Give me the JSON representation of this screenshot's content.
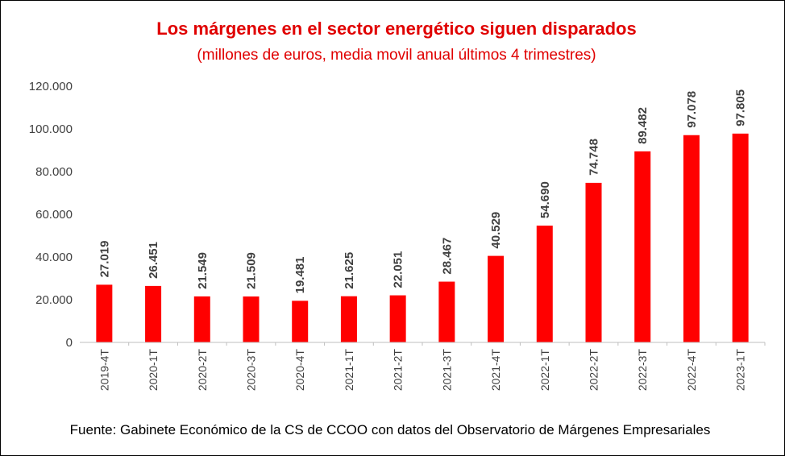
{
  "chart_data": {
    "type": "bar",
    "title": "Los márgenes en el sector energético siguen disparados",
    "subtitle": "(millones de euros, media movil anual últimos 4 trimestres)",
    "categories": [
      "2019-4T",
      "2020-1T",
      "2020-2T",
      "2020-3T",
      "2020-4T",
      "2021-1T",
      "2021-2T",
      "2021-3T",
      "2021-4T",
      "2022-1T",
      "2022-2T",
      "2022-3T",
      "2022-4T",
      "2023-1T"
    ],
    "values": [
      27019,
      26451,
      21549,
      21509,
      19481,
      21625,
      22051,
      28467,
      40529,
      54690,
      74748,
      89482,
      97078,
      97805
    ],
    "data_labels": [
      "27.019",
      "26.451",
      "21.549",
      "21.509",
      "19.481",
      "21.625",
      "22.051",
      "28.467",
      "40.529",
      "54.690",
      "74.748",
      "89.482",
      "97.078",
      "97.805"
    ],
    "y_ticks": [
      0,
      20000,
      40000,
      60000,
      80000,
      100000,
      120000
    ],
    "y_tick_labels": [
      "0",
      "20.000",
      "40.000",
      "60.000",
      "80.000",
      "100.000",
      "120.000"
    ],
    "ylim": [
      0,
      120000
    ],
    "xlabel": "",
    "ylabel": "",
    "grid": false,
    "legend": "none",
    "source": "Fuente: Gabinete Económico de la CS de CCOO con datos del Observatorio de Márgenes Empresariales",
    "colors": {
      "bar": "#ff0000",
      "title": "#e00000",
      "axis": "#bfbfbf",
      "text": "#404040"
    }
  }
}
